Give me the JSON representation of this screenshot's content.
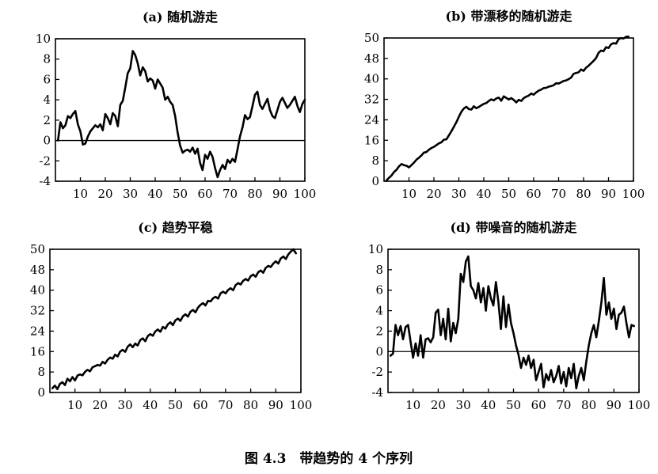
{
  "caption": "图 4.3　带趋势的 4 个序列",
  "colors": {
    "line": "#000000",
    "background": "#ffffff"
  },
  "chart_data": [
    {
      "type": "line",
      "title": "(a) 随机游走",
      "xlabel": "",
      "ylabel": "",
      "xlim": [
        0,
        100
      ],
      "ylim": [
        -4,
        10
      ],
      "xticks": [
        10,
        20,
        30,
        40,
        50,
        60,
        70,
        80,
        90,
        100
      ],
      "yticks": [
        -4,
        -2,
        0,
        2,
        4,
        6,
        8,
        10
      ],
      "zero_line": true,
      "series": [
        {
          "x": [
            1,
            2,
            3,
            4,
            5,
            6,
            7,
            8,
            9,
            10,
            11,
            12,
            13,
            14,
            15,
            16,
            17,
            18,
            19,
            20,
            21,
            22,
            23,
            24,
            25,
            26,
            27,
            28,
            29,
            30,
            31,
            32,
            33,
            34,
            35,
            36,
            37,
            38,
            39,
            40,
            41,
            42,
            43,
            44,
            45,
            46,
            47,
            48,
            49,
            50,
            51,
            52,
            53,
            54,
            55,
            56,
            57,
            58,
            59,
            60,
            61,
            62,
            63,
            64,
            65,
            66,
            67,
            68,
            69,
            70,
            71,
            72,
            73,
            74,
            75,
            76,
            77,
            78,
            79,
            80,
            81,
            82,
            83,
            84,
            85,
            86,
            87,
            88,
            89,
            90,
            91,
            92,
            93,
            94,
            95,
            96,
            97,
            98,
            99,
            100
          ],
          "y": [
            0,
            1.8,
            1.2,
            1.5,
            2.4,
            2.2,
            2.6,
            2.9,
            1.6,
            0.9,
            -0.4,
            -0.3,
            0.4,
            0.9,
            1.2,
            1.5,
            1.3,
            1.6,
            1.0,
            2.6,
            2.2,
            1.6,
            2.7,
            2.4,
            1.4,
            3.5,
            3.9,
            5.2,
            6.6,
            7.1,
            8.8,
            8.4,
            7.6,
            6.4,
            7.2,
            6.8,
            5.8,
            6.1,
            5.9,
            5.1,
            6.0,
            5.6,
            5.2,
            4.0,
            4.3,
            3.8,
            3.5,
            2.4,
            0.8,
            -0.5,
            -1.2,
            -1.0,
            -0.9,
            -1.1,
            -0.7,
            -1.3,
            -0.8,
            -2.2,
            -2.9,
            -1.4,
            -1.8,
            -1.1,
            -1.6,
            -2.7,
            -3.6,
            -2.9,
            -2.4,
            -2.8,
            -1.9,
            -2.2,
            -1.8,
            -2.1,
            -0.9,
            0.4,
            1.3,
            2.5,
            2.1,
            2.3,
            3.4,
            4.5,
            4.8,
            3.5,
            3.1,
            3.6,
            4.1,
            3.0,
            2.4,
            2.2,
            3.0,
            3.8,
            4.2,
            3.7,
            3.2,
            3.5,
            3.9,
            4.3,
            3.4,
            2.8,
            3.6,
            4.0
          ]
        }
      ]
    },
    {
      "type": "line",
      "title": "(b) 带漂移的随机游走",
      "xlabel": "",
      "ylabel": "",
      "xlim": [
        0,
        100
      ],
      "ylim": [
        0,
        50
      ],
      "xticks": [
        10,
        20,
        30,
        40,
        50,
        60,
        70,
        80,
        90,
        100
      ],
      "ytick_labels": [
        "0",
        "8",
        "16",
        "24",
        "32",
        "40",
        "48",
        "50"
      ],
      "zero_line": false,
      "series": [
        {
          "x": [
            1,
            2,
            3,
            4,
            5,
            6,
            7,
            8,
            9,
            10,
            11,
            12,
            13,
            14,
            15,
            16,
            17,
            18,
            19,
            20,
            21,
            22,
            23,
            24,
            25,
            26,
            27,
            28,
            29,
            30,
            31,
            32,
            33,
            34,
            35,
            36,
            37,
            38,
            39,
            40,
            41,
            42,
            43,
            44,
            45,
            46,
            47,
            48,
            49,
            50,
            51,
            52,
            53,
            54,
            55,
            56,
            57,
            58,
            59,
            60,
            61,
            62,
            63,
            64,
            65,
            66,
            67,
            68,
            69,
            70,
            71,
            72,
            73,
            74,
            75,
            76,
            77,
            78,
            79,
            80,
            81,
            82,
            83,
            84,
            85,
            86,
            87,
            88,
            89,
            90,
            91,
            92,
            93,
            94,
            95,
            96,
            97,
            98
          ],
          "y": [
            0.3,
            1.2,
            2.0,
            3.2,
            4.0,
            5.2,
            6.0,
            5.6,
            5.4,
            4.8,
            5.6,
            6.5,
            7.5,
            8.2,
            9.0,
            10.0,
            10.2,
            11.0,
            11.6,
            12.0,
            12.6,
            13.2,
            13.6,
            14.5,
            14.6,
            16.0,
            17.4,
            19.0,
            20.6,
            22.5,
            24.2,
            25.4,
            26.0,
            25.2,
            25.0,
            26.2,
            25.5,
            25.9,
            26.5,
            27.0,
            27.3,
            28.0,
            28.6,
            28.2,
            28.9,
            29.2,
            28.1,
            29.6,
            29.1,
            28.5,
            29.0,
            28.4,
            27.5,
            28.4,
            28.0,
            29.0,
            29.5,
            29.9,
            30.6,
            30.2,
            31.0,
            31.6,
            32.0,
            32.5,
            32.6,
            33.0,
            33.2,
            33.5,
            34.2,
            34.1,
            34.5,
            35.0,
            35.2,
            35.6,
            36.2,
            37.5,
            37.8,
            38.0,
            39.0,
            38.5,
            39.6,
            40.3,
            41.2,
            42.0,
            43.0,
            44.8,
            45.6,
            45.4,
            46.8,
            46.5,
            47.8,
            48.2,
            48.0,
            49.5,
            50.0,
            49.8,
            50.4,
            50.5
          ]
        }
      ]
    },
    {
      "type": "line",
      "title": "(c) 趋势平稳",
      "xlabel": "",
      "ylabel": "",
      "xlim": [
        0,
        100
      ],
      "ylim": [
        0,
        50
      ],
      "xticks": [
        10,
        20,
        30,
        40,
        50,
        60,
        70,
        80,
        90,
        100
      ],
      "ytick_labels": [
        "0",
        "8",
        "16",
        "24",
        "32",
        "40",
        "48",
        "50"
      ],
      "zero_line": false,
      "series": [
        {
          "x": [
            1,
            2,
            3,
            4,
            5,
            6,
            7,
            8,
            9,
            10,
            11,
            12,
            13,
            14,
            15,
            16,
            17,
            18,
            19,
            20,
            21,
            22,
            23,
            24,
            25,
            26,
            27,
            28,
            29,
            30,
            31,
            32,
            33,
            34,
            35,
            36,
            37,
            38,
            39,
            40,
            41,
            42,
            43,
            44,
            45,
            46,
            47,
            48,
            49,
            50,
            51,
            52,
            53,
            54,
            55,
            56,
            57,
            58,
            59,
            60,
            61,
            62,
            63,
            64,
            65,
            66,
            67,
            68,
            69,
            70,
            71,
            72,
            73,
            74,
            75,
            76,
            77,
            78,
            79,
            80,
            81,
            82,
            83,
            84,
            85,
            86,
            87,
            88,
            89,
            90,
            91,
            92,
            93,
            94,
            95,
            96,
            97,
            98
          ],
          "y": [
            1.5,
            2.4,
            1.2,
            3.0,
            3.6,
            2.6,
            4.8,
            3.9,
            5.4,
            4.2,
            5.9,
            6.3,
            6.0,
            7.2,
            7.9,
            7.4,
            8.8,
            9.2,
            9.6,
            9.4,
            10.7,
            10.1,
            11.4,
            12.2,
            11.8,
            13.2,
            12.6,
            14.3,
            14.9,
            14.2,
            16.0,
            16.8,
            15.8,
            17.1,
            16.4,
            18.3,
            18.9,
            17.9,
            19.7,
            20.4,
            19.8,
            21.3,
            22.0,
            21.2,
            22.9,
            22.3,
            23.8,
            24.5,
            23.5,
            25.2,
            25.8,
            25.0,
            26.6,
            27.3,
            26.5,
            28.2,
            28.8,
            28.0,
            29.6,
            30.6,
            31.2,
            30.4,
            32.0,
            31.8,
            32.9,
            33.4,
            32.8,
            34.6,
            35.2,
            34.6,
            35.8,
            36.4,
            35.7,
            37.5,
            38.2,
            37.7,
            39.0,
            39.6,
            39.1,
            40.6,
            41.2,
            40.4,
            42.0,
            42.6,
            41.8,
            43.5,
            44.2,
            43.8,
            45.0,
            45.8,
            45.0,
            46.8,
            47.5,
            46.6,
            48.2,
            49.2,
            50.0,
            48.6
          ]
        }
      ]
    },
    {
      "type": "line",
      "title": "(d) 带噪音的随机游走",
      "xlabel": "",
      "ylabel": "",
      "xlim": [
        0,
        100
      ],
      "ylim": [
        -4,
        10
      ],
      "xticks": [
        10,
        20,
        30,
        40,
        50,
        60,
        70,
        80,
        90,
        100
      ],
      "yticks": [
        -4,
        -2,
        0,
        2,
        4,
        6,
        8,
        10
      ],
      "zero_line": true,
      "series": [
        {
          "x": [
            1,
            2,
            3,
            4,
            5,
            6,
            7,
            8,
            9,
            10,
            11,
            12,
            13,
            14,
            15,
            16,
            17,
            18,
            19,
            20,
            21,
            22,
            23,
            24,
            25,
            26,
            27,
            28,
            29,
            30,
            31,
            32,
            33,
            34,
            35,
            36,
            37,
            38,
            39,
            40,
            41,
            42,
            43,
            44,
            45,
            46,
            47,
            48,
            49,
            50,
            51,
            52,
            53,
            54,
            55,
            56,
            57,
            58,
            59,
            60,
            61,
            62,
            63,
            64,
            65,
            66,
            67,
            68,
            69,
            70,
            71,
            72,
            73,
            74,
            75,
            76,
            77,
            78,
            79,
            80,
            81,
            82,
            83,
            84,
            85,
            86,
            87,
            88,
            89,
            90,
            91,
            92,
            93,
            94,
            95,
            96,
            97,
            98
          ],
          "y": [
            -0.4,
            -0.2,
            2.6,
            1.6,
            2.5,
            1.2,
            2.4,
            2.6,
            1.0,
            -0.6,
            0.8,
            -0.4,
            1.6,
            -0.6,
            1.2,
            1.3,
            0.9,
            1.4,
            3.8,
            4.1,
            1.6,
            3.2,
            1.2,
            4.2,
            1.0,
            2.8,
            1.8,
            3.2,
            7.6,
            6.8,
            8.8,
            9.3,
            6.4,
            6.0,
            5.2,
            6.7,
            4.8,
            6.2,
            4.0,
            6.4,
            5.2,
            4.5,
            6.8,
            4.8,
            2.2,
            5.4,
            2.4,
            4.6,
            2.8,
            1.8,
            0.6,
            -0.3,
            -1.6,
            -0.6,
            -1.3,
            -0.4,
            -1.6,
            -0.8,
            -2.8,
            -2.0,
            -1.2,
            -3.5,
            -2.2,
            -2.8,
            -1.8,
            -3.0,
            -2.4,
            -1.4,
            -3.1,
            -2.0,
            -3.4,
            -1.6,
            -2.6,
            -1.2,
            -3.6,
            -2.4,
            -1.6,
            -2.8,
            -1.0,
            0.6,
            1.8,
            2.6,
            1.4,
            3.0,
            4.8,
            7.2,
            3.6,
            4.8,
            3.2,
            4.2,
            2.2,
            3.6,
            3.8,
            4.4,
            2.8,
            1.4,
            2.6,
            2.5
          ]
        }
      ]
    }
  ]
}
